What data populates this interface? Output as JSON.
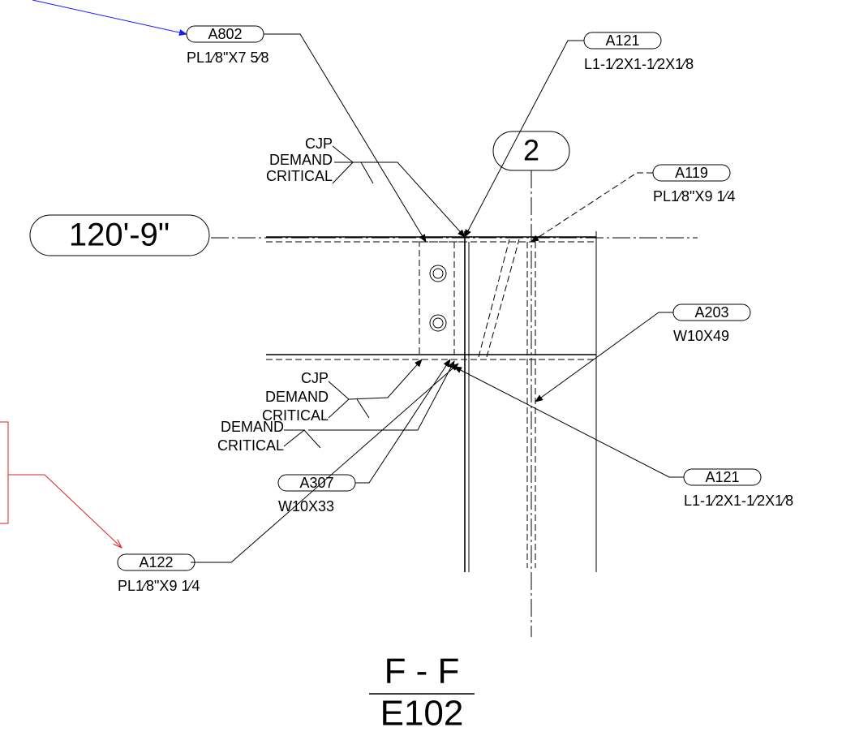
{
  "grid_bubble": "2",
  "elevation": "120'-9\"",
  "section": {
    "title": "F - F",
    "sheet": "E102"
  },
  "callouts": [
    {
      "mark": "A802",
      "description": "PL1⁄8\"X7 5⁄8"
    },
    {
      "mark": "A121",
      "description": "L1-1⁄2X1-1⁄2X1⁄8"
    },
    {
      "mark": "A119",
      "description": "PL1⁄8\"X9 1⁄4"
    },
    {
      "mark": "A203",
      "description": "W10X49"
    },
    {
      "mark": "A121",
      "description": "L1-1⁄2X1-1⁄2X1⁄8"
    },
    {
      "mark": "A307",
      "description": "W10X33"
    },
    {
      "mark": "A122",
      "description": "PL1⁄8\"X9 1⁄4"
    }
  ],
  "welds": [
    {
      "lines": [
        "CJP",
        "DEMAND",
        "CRITICAL"
      ]
    },
    {
      "lines": [
        "CJP",
        "DEMAND",
        "CRITICAL"
      ]
    },
    {
      "lines": [
        "DEMAND",
        "CRITICAL"
      ]
    }
  ]
}
